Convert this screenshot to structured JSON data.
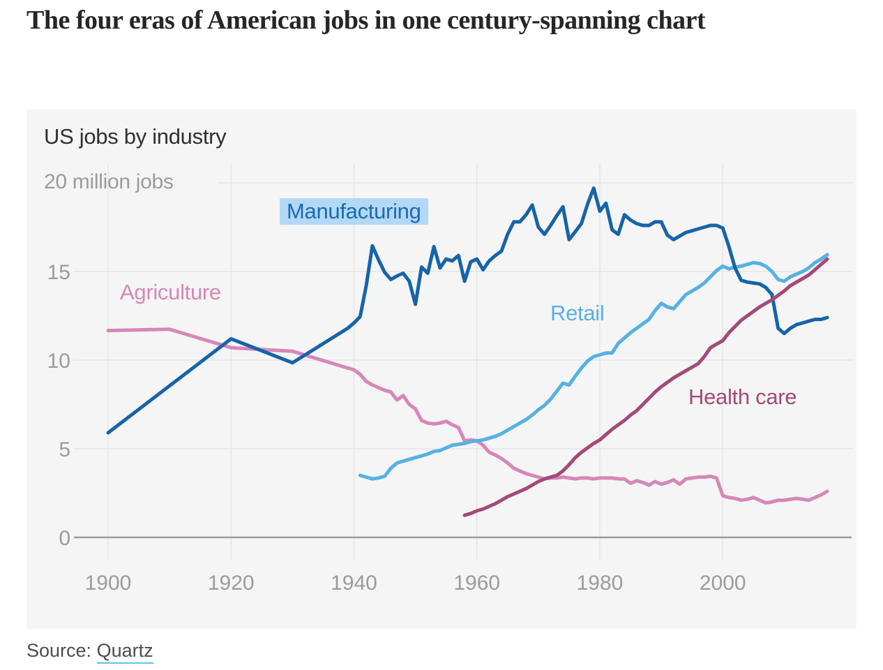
{
  "page": {
    "title": "The four eras of American jobs in one century-spanning chart",
    "source_prefix": "Source:",
    "source_link": "Quartz"
  },
  "chart_data": {
    "type": "line",
    "title": "US jobs by industry",
    "grid": true,
    "legend_position": "inline-annotations",
    "x_axis": {
      "ticks": [
        1900,
        1920,
        1940,
        1960,
        1980,
        2000
      ],
      "range": [
        1896,
        2021
      ]
    },
    "y_axis": {
      "ticks": [
        0,
        5,
        10,
        15,
        20
      ],
      "top_label": "20 million jobs",
      "range": [
        0,
        20
      ],
      "unit": "million jobs"
    },
    "style": {
      "panel_bg": "#f5f5f5",
      "grid_color": "#e5e5e5",
      "axis_color": "#9c9c9c",
      "tick_color": "#9b9b9b",
      "title_color": "#303030",
      "highlight_bg": "#b3d8f6",
      "highlight_text": "#1a6ab1"
    },
    "series": [
      {
        "name": "Agriculture",
        "color": "#d687b8",
        "label": {
          "year": 1901.9,
          "value": 14.49,
          "highlighted": false
        },
        "points": [
          [
            1900,
            11.67
          ],
          [
            1910,
            11.74
          ],
          [
            1920,
            10.7
          ],
          [
            1930,
            10.5
          ],
          [
            1940,
            9.45
          ],
          [
            1941,
            9.2
          ],
          [
            1942,
            8.8
          ],
          [
            1943,
            8.6
          ],
          [
            1944,
            8.45
          ],
          [
            1945,
            8.3
          ],
          [
            1946,
            8.2
          ],
          [
            1947,
            7.75
          ],
          [
            1948,
            8.0
          ],
          [
            1949,
            7.5
          ],
          [
            1950,
            7.25
          ],
          [
            1951,
            6.6
          ],
          [
            1952,
            6.45
          ],
          [
            1953,
            6.4
          ],
          [
            1954,
            6.45
          ],
          [
            1955,
            6.55
          ],
          [
            1956,
            6.35
          ],
          [
            1957,
            6.2
          ],
          [
            1958,
            5.45
          ],
          [
            1959,
            5.5
          ],
          [
            1960,
            5.45
          ],
          [
            1961,
            5.2
          ],
          [
            1962,
            4.8
          ],
          [
            1963,
            4.65
          ],
          [
            1964,
            4.45
          ],
          [
            1965,
            4.2
          ],
          [
            1966,
            3.9
          ],
          [
            1967,
            3.75
          ],
          [
            1968,
            3.6
          ],
          [
            1969,
            3.5
          ],
          [
            1970,
            3.4
          ],
          [
            1971,
            3.3
          ],
          [
            1972,
            3.35
          ],
          [
            1973,
            3.35
          ],
          [
            1974,
            3.4
          ],
          [
            1975,
            3.35
          ],
          [
            1976,
            3.3
          ],
          [
            1977,
            3.35
          ],
          [
            1978,
            3.35
          ],
          [
            1979,
            3.3
          ],
          [
            1980,
            3.35
          ],
          [
            1981,
            3.35
          ],
          [
            1982,
            3.35
          ],
          [
            1983,
            3.3
          ],
          [
            1984,
            3.3
          ],
          [
            1985,
            3.05
          ],
          [
            1986,
            3.2
          ],
          [
            1987,
            3.1
          ],
          [
            1988,
            2.95
          ],
          [
            1989,
            3.15
          ],
          [
            1990,
            3.0
          ],
          [
            1991,
            3.1
          ],
          [
            1992,
            3.25
          ],
          [
            1993,
            3.0
          ],
          [
            1994,
            3.3
          ],
          [
            1995,
            3.35
          ],
          [
            1996,
            3.4
          ],
          [
            1997,
            3.4
          ],
          [
            1998,
            3.45
          ],
          [
            1999,
            3.35
          ],
          [
            2000,
            2.35
          ],
          [
            2001,
            2.25
          ],
          [
            2002,
            2.2
          ],
          [
            2003,
            2.1
          ],
          [
            2004,
            2.15
          ],
          [
            2005,
            2.25
          ],
          [
            2006,
            2.1
          ],
          [
            2007,
            1.95
          ],
          [
            2008,
            2.0
          ],
          [
            2009,
            2.1
          ],
          [
            2010,
            2.1
          ],
          [
            2011,
            2.15
          ],
          [
            2012,
            2.2
          ],
          [
            2013,
            2.15
          ],
          [
            2014,
            2.1
          ],
          [
            2015,
            2.25
          ],
          [
            2016,
            2.4
          ],
          [
            2017,
            2.6
          ]
        ]
      },
      {
        "name": "Retail",
        "color": "#56b1e2",
        "label": {
          "year": 1971.9,
          "value": 13.31,
          "highlighted": false
        },
        "points": [
          [
            1941,
            3.5
          ],
          [
            1942,
            3.4
          ],
          [
            1943,
            3.3
          ],
          [
            1944,
            3.35
          ],
          [
            1945,
            3.45
          ],
          [
            1946,
            3.9
          ],
          [
            1947,
            4.2
          ],
          [
            1948,
            4.3
          ],
          [
            1949,
            4.4
          ],
          [
            1950,
            4.5
          ],
          [
            1951,
            4.6
          ],
          [
            1952,
            4.7
          ],
          [
            1953,
            4.85
          ],
          [
            1954,
            4.9
          ],
          [
            1955,
            5.05
          ],
          [
            1956,
            5.2
          ],
          [
            1957,
            5.25
          ],
          [
            1958,
            5.3
          ],
          [
            1959,
            5.4
          ],
          [
            1960,
            5.45
          ],
          [
            1961,
            5.5
          ],
          [
            1962,
            5.6
          ],
          [
            1963,
            5.7
          ],
          [
            1964,
            5.85
          ],
          [
            1965,
            6.05
          ],
          [
            1966,
            6.25
          ],
          [
            1967,
            6.45
          ],
          [
            1968,
            6.65
          ],
          [
            1969,
            6.9
          ],
          [
            1970,
            7.2
          ],
          [
            1971,
            7.45
          ],
          [
            1972,
            7.8
          ],
          [
            1973,
            8.25
          ],
          [
            1974,
            8.7
          ],
          [
            1975,
            8.6
          ],
          [
            1976,
            9.1
          ],
          [
            1977,
            9.55
          ],
          [
            1978,
            9.95
          ],
          [
            1979,
            10.2
          ],
          [
            1980,
            10.3
          ],
          [
            1981,
            10.4
          ],
          [
            1982,
            10.4
          ],
          [
            1983,
            10.95
          ],
          [
            1984,
            11.25
          ],
          [
            1985,
            11.55
          ],
          [
            1986,
            11.8
          ],
          [
            1987,
            12.05
          ],
          [
            1988,
            12.3
          ],
          [
            1989,
            12.8
          ],
          [
            1990,
            13.2
          ],
          [
            1991,
            13.0
          ],
          [
            1992,
            12.9
          ],
          [
            1993,
            13.3
          ],
          [
            1994,
            13.7
          ],
          [
            1995,
            13.9
          ],
          [
            1996,
            14.1
          ],
          [
            1997,
            14.35
          ],
          [
            1998,
            14.7
          ],
          [
            1999,
            15.05
          ],
          [
            2000,
            15.3
          ],
          [
            2001,
            15.15
          ],
          [
            2002,
            15.25
          ],
          [
            2003,
            15.3
          ],
          [
            2004,
            15.4
          ],
          [
            2005,
            15.5
          ],
          [
            2006,
            15.45
          ],
          [
            2007,
            15.3
          ],
          [
            2008,
            15.0
          ],
          [
            2009,
            14.55
          ],
          [
            2010,
            14.45
          ],
          [
            2011,
            14.7
          ],
          [
            2012,
            14.85
          ],
          [
            2013,
            15.0
          ],
          [
            2014,
            15.2
          ],
          [
            2015,
            15.5
          ],
          [
            2016,
            15.7
          ],
          [
            2017,
            15.95
          ]
        ]
      },
      {
        "name": "Manufacturing",
        "color": "#1763a8",
        "label": {
          "year": 1929.05,
          "value": 19.06,
          "highlighted": true
        },
        "points": [
          [
            1900,
            5.9
          ],
          [
            1910,
            8.55
          ],
          [
            1920,
            11.2
          ],
          [
            1930,
            9.85
          ],
          [
            1939,
            11.8
          ],
          [
            1940,
            12.1
          ],
          [
            1941,
            12.45
          ],
          [
            1942,
            14.2
          ],
          [
            1943,
            16.45
          ],
          [
            1944,
            15.65
          ],
          [
            1945,
            14.95
          ],
          [
            1946,
            14.55
          ],
          [
            1947,
            14.75
          ],
          [
            1948,
            14.9
          ],
          [
            1949,
            14.45
          ],
          [
            1950,
            13.15
          ],
          [
            1951,
            15.25
          ],
          [
            1952,
            14.9
          ],
          [
            1953,
            16.4
          ],
          [
            1954,
            15.2
          ],
          [
            1955,
            15.7
          ],
          [
            1956,
            15.6
          ],
          [
            1957,
            15.9
          ],
          [
            1958,
            14.45
          ],
          [
            1959,
            15.55
          ],
          [
            1960,
            15.7
          ],
          [
            1961,
            15.1
          ],
          [
            1962,
            15.6
          ],
          [
            1963,
            15.9
          ],
          [
            1964,
            16.15
          ],
          [
            1965,
            17.1
          ],
          [
            1966,
            17.8
          ],
          [
            1967,
            17.8
          ],
          [
            1968,
            18.2
          ],
          [
            1969,
            18.75
          ],
          [
            1970,
            17.5
          ],
          [
            1971,
            17.1
          ],
          [
            1972,
            17.6
          ],
          [
            1973,
            18.15
          ],
          [
            1974,
            18.65
          ],
          [
            1975,
            16.8
          ],
          [
            1976,
            17.25
          ],
          [
            1977,
            17.7
          ],
          [
            1978,
            18.8
          ],
          [
            1979,
            19.7
          ],
          [
            1980,
            18.4
          ],
          [
            1981,
            18.85
          ],
          [
            1982,
            17.35
          ],
          [
            1983,
            17.1
          ],
          [
            1984,
            18.2
          ],
          [
            1985,
            17.9
          ],
          [
            1986,
            17.7
          ],
          [
            1987,
            17.6
          ],
          [
            1988,
            17.6
          ],
          [
            1989,
            17.8
          ],
          [
            1990,
            17.8
          ],
          [
            1991,
            17.05
          ],
          [
            1992,
            16.8
          ],
          [
            1993,
            17.0
          ],
          [
            1994,
            17.2
          ],
          [
            1995,
            17.3
          ],
          [
            1996,
            17.4
          ],
          [
            1997,
            17.5
          ],
          [
            1998,
            17.6
          ],
          [
            1999,
            17.6
          ],
          [
            2000,
            17.45
          ],
          [
            2001,
            16.4
          ],
          [
            2002,
            15.2
          ],
          [
            2003,
            14.5
          ],
          [
            2004,
            14.4
          ],
          [
            2005,
            14.35
          ],
          [
            2006,
            14.3
          ],
          [
            2007,
            14.1
          ],
          [
            2008,
            13.7
          ],
          [
            2009,
            11.8
          ],
          [
            2010,
            11.5
          ],
          [
            2011,
            11.8
          ],
          [
            2012,
            12.0
          ],
          [
            2013,
            12.1
          ],
          [
            2014,
            12.2
          ],
          [
            2015,
            12.3
          ],
          [
            2016,
            12.3
          ],
          [
            2017,
            12.4
          ]
        ]
      },
      {
        "name": "Health care",
        "color": "#a34a78",
        "label": {
          "year": 1994.4,
          "value": 8.58,
          "highlighted": false
        },
        "points": [
          [
            1958,
            1.25
          ],
          [
            1959,
            1.35
          ],
          [
            1960,
            1.5
          ],
          [
            1961,
            1.6
          ],
          [
            1962,
            1.75
          ],
          [
            1963,
            1.9
          ],
          [
            1964,
            2.1
          ],
          [
            1965,
            2.3
          ],
          [
            1966,
            2.45
          ],
          [
            1967,
            2.6
          ],
          [
            1968,
            2.75
          ],
          [
            1969,
            2.95
          ],
          [
            1970,
            3.15
          ],
          [
            1971,
            3.3
          ],
          [
            1972,
            3.4
          ],
          [
            1973,
            3.5
          ],
          [
            1974,
            3.75
          ],
          [
            1975,
            4.1
          ],
          [
            1976,
            4.5
          ],
          [
            1977,
            4.8
          ],
          [
            1978,
            5.05
          ],
          [
            1979,
            5.3
          ],
          [
            1980,
            5.5
          ],
          [
            1981,
            5.8
          ],
          [
            1982,
            6.1
          ],
          [
            1983,
            6.35
          ],
          [
            1984,
            6.6
          ],
          [
            1985,
            6.9
          ],
          [
            1986,
            7.15
          ],
          [
            1987,
            7.5
          ],
          [
            1988,
            7.85
          ],
          [
            1989,
            8.2
          ],
          [
            1990,
            8.5
          ],
          [
            1991,
            8.75
          ],
          [
            1992,
            9.0
          ],
          [
            1993,
            9.2
          ],
          [
            1994,
            9.4
          ],
          [
            1995,
            9.6
          ],
          [
            1996,
            9.8
          ],
          [
            1997,
            10.2
          ],
          [
            1998,
            10.7
          ],
          [
            1999,
            10.9
          ],
          [
            2000,
            11.1
          ],
          [
            2001,
            11.55
          ],
          [
            2002,
            11.9
          ],
          [
            2003,
            12.25
          ],
          [
            2004,
            12.5
          ],
          [
            2005,
            12.75
          ],
          [
            2006,
            13.0
          ],
          [
            2007,
            13.2
          ],
          [
            2008,
            13.4
          ],
          [
            2009,
            13.65
          ],
          [
            2010,
            13.9
          ],
          [
            2011,
            14.2
          ],
          [
            2012,
            14.4
          ],
          [
            2013,
            14.6
          ],
          [
            2014,
            14.8
          ],
          [
            2015,
            15.1
          ],
          [
            2016,
            15.4
          ],
          [
            2017,
            15.7
          ]
        ]
      }
    ]
  }
}
